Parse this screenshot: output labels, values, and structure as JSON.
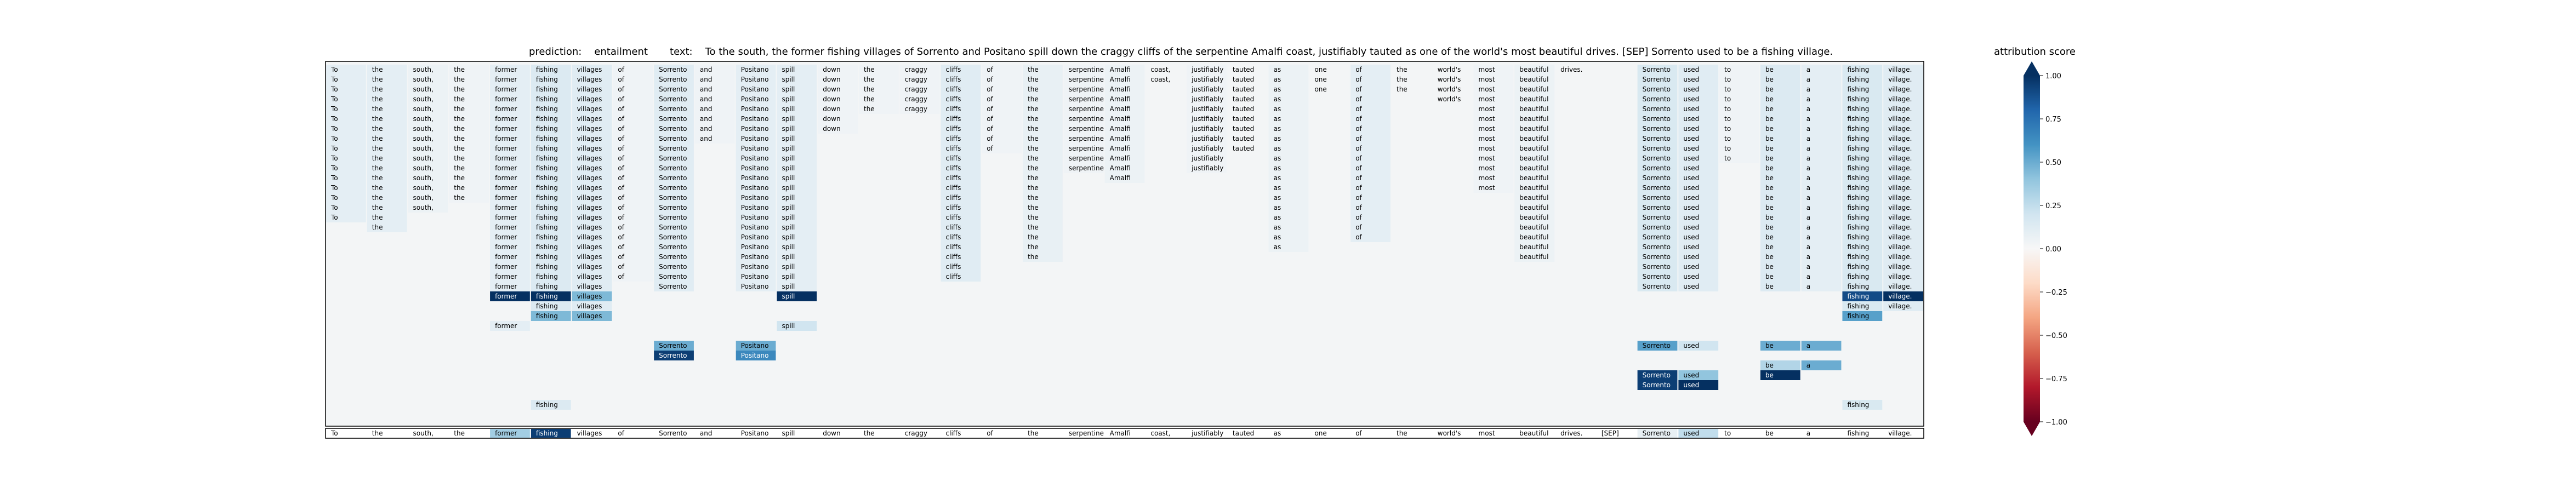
{
  "chart_data": {
    "type": "heatmap",
    "prediction_label": "prediction:",
    "prediction": "entailment",
    "text_label": "text:",
    "text": "To the south, the former fishing villages of Sorrento and Positano spill down the craggy cliffs of the serpentine Amalfi coast, justifiably tauted as one of the world's most beautiful drives. [SEP] Sorrento used to be a fishing village.",
    "tokens": [
      "To",
      "the",
      "south,",
      "the",
      "former",
      "fishing",
      "villages",
      "of",
      "Sorrento",
      "and",
      "Positano",
      "spill",
      "down",
      "the",
      "craggy",
      "cliffs",
      "of",
      "the",
      "serpentine",
      "Amalfi",
      "coast,",
      "justifiably",
      "tauted",
      "as",
      "one",
      "of",
      "the",
      "world's",
      "most",
      "beautiful",
      "drives.",
      "[SEP]",
      "Sorrento",
      "used",
      "to",
      "be",
      "a",
      "fishing",
      "village."
    ],
    "rows": [
      {
        "keep": [
          0,
          1,
          2,
          3,
          4,
          5,
          6,
          7,
          8,
          9,
          10,
          11,
          12,
          13,
          14,
          15,
          16,
          17,
          18,
          19,
          20,
          21,
          22,
          23,
          24,
          25,
          26,
          27,
          28,
          29,
          30,
          32,
          33,
          34,
          35,
          36,
          37,
          38
        ],
        "attr": {}
      },
      {
        "keep": [
          0,
          1,
          2,
          3,
          4,
          5,
          6,
          7,
          8,
          9,
          10,
          11,
          12,
          13,
          14,
          15,
          16,
          17,
          18,
          19,
          20,
          21,
          22,
          23,
          24,
          25,
          26,
          27,
          28,
          29,
          32,
          33,
          34,
          35,
          36,
          37,
          38
        ],
        "attr": {}
      },
      {
        "keep": [
          0,
          1,
          2,
          3,
          4,
          5,
          6,
          7,
          8,
          9,
          10,
          11,
          12,
          13,
          14,
          15,
          16,
          17,
          18,
          19,
          21,
          22,
          23,
          24,
          25,
          26,
          27,
          28,
          29,
          32,
          33,
          34,
          35,
          36,
          37,
          38
        ],
        "attr": {}
      },
      {
        "keep": [
          0,
          1,
          2,
          3,
          4,
          5,
          6,
          7,
          8,
          9,
          10,
          11,
          12,
          13,
          14,
          15,
          16,
          17,
          18,
          19,
          21,
          22,
          23,
          25,
          27,
          28,
          29,
          32,
          33,
          34,
          35,
          36,
          37,
          38
        ],
        "attr": {}
      },
      {
        "keep": [
          0,
          1,
          2,
          3,
          4,
          5,
          6,
          7,
          8,
          9,
          10,
          11,
          12,
          13,
          14,
          15,
          16,
          17,
          18,
          19,
          21,
          22,
          23,
          25,
          28,
          29,
          32,
          33,
          34,
          35,
          36,
          37,
          38
        ],
        "attr": {}
      },
      {
        "keep": [
          0,
          1,
          2,
          3,
          4,
          5,
          6,
          7,
          8,
          9,
          10,
          11,
          12,
          15,
          16,
          17,
          18,
          19,
          21,
          22,
          23,
          25,
          28,
          29,
          32,
          33,
          34,
          35,
          36,
          37,
          38
        ],
        "attr": {}
      },
      {
        "keep": [
          0,
          1,
          2,
          3,
          4,
          5,
          6,
          7,
          8,
          9,
          10,
          11,
          12,
          15,
          16,
          17,
          18,
          19,
          21,
          22,
          23,
          25,
          28,
          29,
          32,
          33,
          34,
          35,
          36,
          37,
          38
        ],
        "attr": {}
      },
      {
        "keep": [
          0,
          1,
          2,
          3,
          4,
          5,
          6,
          7,
          8,
          9,
          10,
          11,
          15,
          16,
          17,
          18,
          19,
          21,
          22,
          23,
          25,
          28,
          29,
          32,
          33,
          34,
          35,
          36,
          37,
          38
        ],
        "attr": {}
      },
      {
        "keep": [
          0,
          1,
          2,
          3,
          4,
          5,
          6,
          7,
          8,
          10,
          11,
          15,
          16,
          17,
          18,
          19,
          21,
          22,
          23,
          25,
          28,
          29,
          32,
          33,
          34,
          35,
          36,
          37,
          38
        ],
        "attr": {}
      },
      {
        "keep": [
          0,
          1,
          2,
          3,
          4,
          5,
          6,
          7,
          8,
          10,
          11,
          15,
          17,
          18,
          19,
          21,
          23,
          25,
          28,
          29,
          32,
          33,
          34,
          35,
          36,
          37,
          38
        ],
        "attr": {}
      },
      {
        "keep": [
          0,
          1,
          2,
          3,
          4,
          5,
          6,
          7,
          8,
          10,
          11,
          15,
          17,
          18,
          19,
          21,
          23,
          25,
          28,
          29,
          32,
          33,
          35,
          36,
          37,
          38
        ],
        "attr": {}
      },
      {
        "keep": [
          0,
          1,
          2,
          3,
          4,
          5,
          6,
          7,
          8,
          10,
          11,
          15,
          17,
          19,
          23,
          25,
          28,
          29,
          32,
          33,
          35,
          36,
          37,
          38
        ],
        "attr": {}
      },
      {
        "keep": [
          0,
          1,
          2,
          3,
          4,
          5,
          6,
          7,
          8,
          10,
          11,
          15,
          17,
          23,
          25,
          28,
          29,
          32,
          33,
          35,
          36,
          37,
          38
        ],
        "attr": {}
      },
      {
        "keep": [
          0,
          1,
          2,
          3,
          4,
          5,
          6,
          7,
          8,
          10,
          11,
          15,
          17,
          23,
          25,
          29,
          32,
          33,
          35,
          36,
          37,
          38
        ],
        "attr": {}
      },
      {
        "keep": [
          0,
          1,
          2,
          4,
          5,
          6,
          7,
          8,
          10,
          11,
          15,
          17,
          23,
          25,
          29,
          32,
          33,
          35,
          36,
          37,
          38
        ],
        "attr": {}
      },
      {
        "keep": [
          0,
          1,
          4,
          5,
          6,
          7,
          8,
          10,
          11,
          15,
          17,
          23,
          25,
          29,
          32,
          33,
          35,
          36,
          37,
          38
        ],
        "attr": {}
      },
      {
        "keep": [
          1,
          4,
          5,
          6,
          7,
          8,
          10,
          11,
          15,
          17,
          23,
          25,
          29,
          32,
          33,
          35,
          36,
          37,
          38
        ],
        "attr": {}
      },
      {
        "keep": [
          4,
          5,
          6,
          7,
          8,
          10,
          11,
          15,
          17,
          23,
          25,
          29,
          32,
          33,
          35,
          36,
          37,
          38
        ],
        "attr": {}
      },
      {
        "keep": [
          4,
          5,
          6,
          7,
          8,
          10,
          11,
          15,
          17,
          23,
          29,
          32,
          33,
          35,
          36,
          37,
          38
        ],
        "attr": {}
      },
      {
        "keep": [
          4,
          5,
          6,
          7,
          8,
          10,
          11,
          15,
          17,
          29,
          32,
          33,
          35,
          36,
          37,
          38
        ],
        "attr": {}
      },
      {
        "keep": [
          4,
          5,
          6,
          7,
          8,
          10,
          11,
          15,
          32,
          33,
          35,
          36,
          37,
          38
        ],
        "attr": {}
      },
      {
        "keep": [
          4,
          5,
          6,
          7,
          8,
          10,
          11,
          15,
          32,
          33,
          35,
          36,
          37,
          38
        ],
        "attr": {}
      },
      {
        "keep": [
          4,
          5,
          6,
          8,
          10,
          11,
          32,
          33,
          35,
          36,
          37,
          38
        ],
        "attr": {}
      },
      {
        "keep": [
          4,
          5,
          6,
          11,
          37,
          38
        ],
        "attr": {
          "4": 1.0,
          "5": 1.0,
          "6": 0.45,
          "11": 1.0,
          "37": 0.9,
          "38": 1.0
        }
      },
      {
        "keep": [
          5,
          6,
          37,
          38
        ],
        "attr": {}
      },
      {
        "keep": [
          5,
          6,
          37
        ],
        "attr": {
          "5": 0.45,
          "6": 0.45,
          "37": 0.55
        }
      },
      {
        "keep": [
          4,
          11
        ],
        "attr": {
          "4": 0.1,
          "11": 0.2
        }
      },
      {
        "keep": [],
        "attr": {}
      },
      {
        "keep": [
          8,
          10,
          32,
          33,
          35,
          36
        ],
        "attr": {
          "8": 0.5,
          "10": 0.5,
          "32": 0.55,
          "33": 0.2,
          "35": 0.5,
          "36": 0.5
        }
      },
      {
        "keep": [
          8,
          10
        ],
        "attr": {
          "8": 0.95,
          "10": 0.65
        }
      },
      {
        "keep": [
          35,
          36
        ],
        "attr": {
          "35": 0.3,
          "36": 0.5
        }
      },
      {
        "keep": [
          32,
          33,
          35
        ],
        "attr": {
          "32": 0.95,
          "33": 0.4,
          "35": 1.0
        }
      },
      {
        "keep": [
          32,
          33
        ],
        "attr": {
          "32": 0.95,
          "33": 1.0
        }
      },
      {
        "keep": [],
        "attr": {}
      },
      {
        "keep": [
          5,
          37
        ],
        "attr": {}
      }
    ],
    "base_attr": {
      "0": 0.1,
      "1": 0.1,
      "2": 0.06,
      "3": 0.04,
      "4": 0.1,
      "5": 0.14,
      "6": 0.12,
      "7": 0.04,
      "8": 0.12,
      "9": 0.04,
      "10": 0.1,
      "11": 0.1,
      "12": 0.04,
      "13": 0.04,
      "14": 0.04,
      "15": 0.12,
      "16": 0.04,
      "17": 0.08,
      "18": 0.04,
      "19": 0.06,
      "20": 0.02,
      "21": 0.04,
      "22": 0.02,
      "23": 0.06,
      "24": 0.02,
      "25": 0.1,
      "26": 0.02,
      "27": 0.02,
      "28": 0.04,
      "29": 0.06,
      "30": 0.02,
      "31": 0.0,
      "32": 0.16,
      "33": 0.12,
      "34": 0.04,
      "35": 0.14,
      "36": 0.1,
      "37": 0.16,
      "38": 0.12
    },
    "final_attr": {
      "0": 0.0,
      "1": 0.0,
      "2": 0.0,
      "3": 0.0,
      "4": 0.35,
      "5": 0.95,
      "6": 0.0,
      "7": 0.0,
      "8": 0.0,
      "9": 0.0,
      "10": 0.0,
      "11": 0.0,
      "12": 0.0,
      "13": 0.0,
      "14": 0.0,
      "15": 0.0,
      "16": 0.0,
      "17": 0.0,
      "18": 0.0,
      "19": 0.0,
      "20": 0.0,
      "21": 0.0,
      "22": 0.0,
      "23": 0.0,
      "24": 0.0,
      "25": 0.0,
      "26": 0.0,
      "27": 0.0,
      "28": 0.0,
      "29": 0.0,
      "30": 0.0,
      "31": 0.0,
      "32": 0.08,
      "33": 0.25,
      "34": 0.0,
      "35": 0.0,
      "36": 0.0,
      "37": 0.0,
      "38": 0.0
    },
    "colorbar": {
      "title": "attribution score",
      "range": [
        -1.0,
        1.0
      ],
      "ticks": [
        "1.00",
        "0.75",
        "0.50",
        "0.25",
        "0.00",
        "−0.25",
        "−0.50",
        "−0.75",
        "−1.00"
      ],
      "colors_high_to_low": [
        "#053061",
        "#2166ac",
        "#4393c3",
        "#92c5de",
        "#d1e5f0",
        "#f7f7f7",
        "#fddbc7",
        "#f4a582",
        "#d6604d",
        "#b2182b",
        "#67001f"
      ]
    }
  }
}
